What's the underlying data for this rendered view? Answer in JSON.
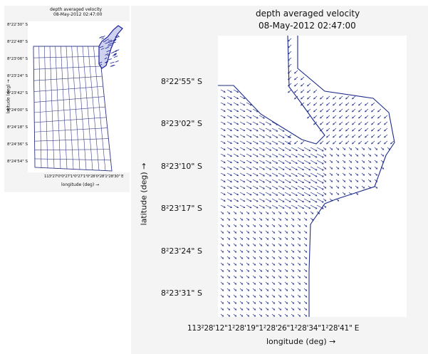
{
  "small_plot": {
    "title": "depth averaged velocity",
    "subtitle": "08-May-2012 02:47:00",
    "ylabel": "latitude (deg) →",
    "xlabel": "longitude (deg) →",
    "yticks": [
      "8²22'30\" S",
      "8²22'48\" S",
      "8²23'06\" S",
      "8²23'24\" S",
      "8²23'42\" S",
      "8²24'00\" S",
      "8²24'18\" S",
      "8²24'36\" S",
      "8²24'54\" S"
    ],
    "xtick_text": "113²27'0²0²27'1²0²27'1²0²28'0²28'1²28'30\" E",
    "line_color": "#3a3f8a",
    "velocity_color": "#1a1f9a"
  },
  "main_plot": {
    "title": "depth averaged velocity",
    "subtitle": "08-May-2012 02:47:00",
    "ylabel": "latitude (deg) →",
    "xlabel": "longitude (deg) →",
    "yticks": [
      "8²22'55\" S",
      "8²23'02\" S",
      "8²23'10\" S",
      "8²23'17\" S",
      "8²23'24\" S",
      "8²23'31\" S"
    ],
    "xtick_text": "113²28'12\"1²28'19\"1²28'26\"1²28'34\"1²28'41\" E",
    "arrow_color": "#1b2a8a",
    "coast_color": "#1b2a8a"
  }
}
